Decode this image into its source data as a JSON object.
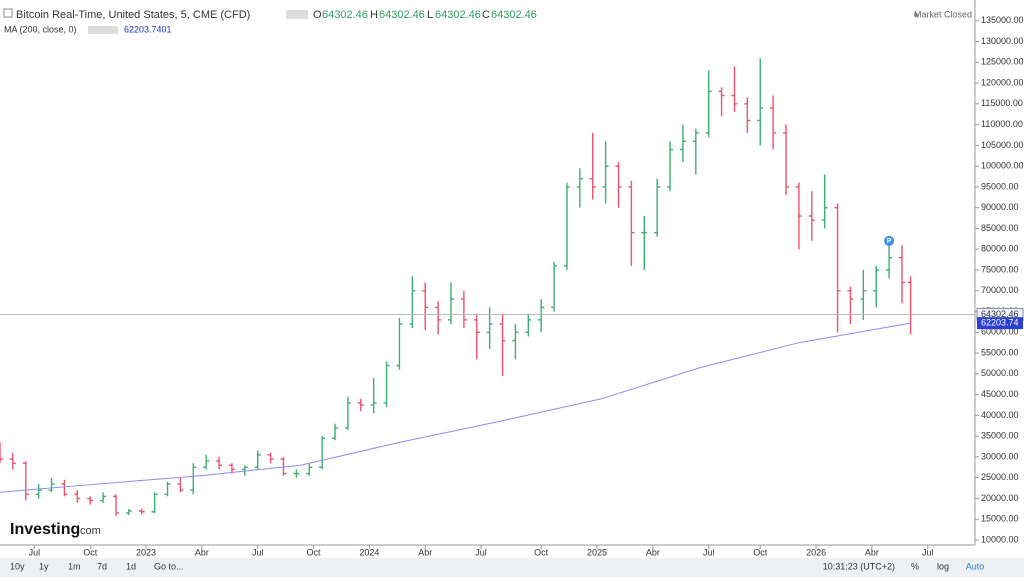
{
  "header": {
    "title": "Bitcoin Real-Time, United States, 5, CME (CFD)",
    "o_label": "O",
    "open": "64302.46",
    "h_label": "H",
    "high": "64302.46",
    "l_label": "L",
    "low": "64302.46",
    "c_label": "C",
    "close": "64302.46",
    "ma_label": "MA (200, close, 0)",
    "ma_value": "62203.7401",
    "status": "Market Closed"
  },
  "logo": {
    "name": "Investing",
    "suffix": ".com"
  },
  "toolbar": {
    "ranges": [
      "10y",
      "1y",
      "1m",
      "7d",
      "1d",
      "Go to..."
    ],
    "time": "10:31:23 (UTC+2)",
    "percent": "%",
    "log": "log",
    "auto": "Auto"
  },
  "chart_data": {
    "type": "ohlc",
    "up_color": "#3fae73",
    "down_color": "#ee5169",
    "ma_color": "#8b8cf0",
    "xlim": [
      0,
      227
    ],
    "ylim": [
      8800,
      140000
    ],
    "xticks": [
      {
        "value": 8,
        "label": "Jul"
      },
      {
        "value": 21,
        "label": "Oct"
      },
      {
        "value": 34,
        "label": "2023"
      },
      {
        "value": 47,
        "label": "Abr"
      },
      {
        "value": 60,
        "label": "Jul"
      },
      {
        "value": 73,
        "label": "Oct"
      },
      {
        "value": 86,
        "label": "2024"
      },
      {
        "value": 99,
        "label": "Abr"
      },
      {
        "value": 112,
        "label": "Jul"
      },
      {
        "value": 126,
        "label": "Oct"
      },
      {
        "value": 139,
        "label": "2025"
      },
      {
        "value": 152,
        "label": "Abr"
      },
      {
        "value": 165,
        "label": "Jul"
      },
      {
        "value": 177,
        "label": "Oct"
      },
      {
        "value": 190,
        "label": "2026"
      },
      {
        "value": 203,
        "label": "Abr"
      },
      {
        "value": 216,
        "label": "Jul"
      }
    ],
    "yticks": [
      {
        "value": 10000,
        "label": "10000.00"
      },
      {
        "value": 15000,
        "label": "15000.00"
      },
      {
        "value": 20000,
        "label": "20000.00"
      },
      {
        "value": 25000,
        "label": "25000.00"
      },
      {
        "value": 30000,
        "label": "30000.00"
      },
      {
        "value": 35000,
        "label": "35000.00"
      },
      {
        "value": 40000,
        "label": "40000.00"
      },
      {
        "value": 45000,
        "label": "45000.00"
      },
      {
        "value": 50000,
        "label": "50000.00"
      },
      {
        "value": 55000,
        "label": "55000.00"
      },
      {
        "value": 60000,
        "label": "60000.00"
      },
      {
        "value": 65000,
        "label": "65000.00"
      },
      {
        "value": 70000,
        "label": "70000.00"
      },
      {
        "value": 75000,
        "label": "75000.00"
      },
      {
        "value": 80000,
        "label": "80000.00"
      },
      {
        "value": 85000,
        "label": "85000.00"
      },
      {
        "value": 90000,
        "label": "90000.00"
      },
      {
        "value": 95000,
        "label": "95000.00"
      },
      {
        "value": 100000,
        "label": "100000.00"
      },
      {
        "value": 105000,
        "label": "105000.00"
      },
      {
        "value": 110000,
        "label": "110000.00"
      },
      {
        "value": 115000,
        "label": "115000.00"
      },
      {
        "value": 120000,
        "label": "120000.00"
      },
      {
        "value": 125000,
        "label": "125000.00"
      },
      {
        "value": 130000,
        "label": "130000.00"
      },
      {
        "value": 135000,
        "label": "135000.00"
      }
    ],
    "x": [
      0,
      3,
      6,
      9,
      12,
      15,
      18,
      21,
      24,
      27,
      30,
      33,
      36,
      39,
      42,
      45,
      48,
      51,
      54,
      57,
      60,
      63,
      66,
      69,
      72,
      75,
      78,
      81,
      84,
      87,
      90,
      93,
      96,
      99,
      102,
      105,
      108,
      111,
      114,
      117,
      120,
      123,
      126,
      129,
      132,
      135,
      138,
      141,
      144,
      147,
      150,
      153,
      156,
      159,
      162,
      165,
      168,
      171,
      174,
      177,
      180,
      183,
      186,
      189,
      192,
      195,
      198,
      201,
      204,
      207,
      210,
      212
    ],
    "open": [
      31500,
      29500,
      28500,
      21000,
      22000,
      23500,
      21000,
      20000,
      19500,
      20500,
      16500,
      17000,
      16800,
      21000,
      23500,
      22000,
      27500,
      29000,
      28000,
      27000,
      27500,
      30500,
      29500,
      26000,
      26000,
      27500,
      34500,
      37000,
      43000,
      42500,
      43000,
      52000,
      62000,
      70000,
      66000,
      63000,
      68000,
      63000,
      60000,
      62000,
      58000,
      60000,
      63000,
      66000,
      76000,
      95000,
      97000,
      95000,
      100000,
      95000,
      84000,
      84000,
      95000,
      104000,
      106000,
      108000,
      118000,
      117000,
      115000,
      111000,
      114000,
      108000,
      95000,
      88000,
      87000,
      90000,
      70000,
      68000,
      70000,
      75000,
      78000,
      72000
    ],
    "high": [
      33500,
      31000,
      29000,
      23500,
      25000,
      24500,
      22000,
      20500,
      21500,
      21000,
      17500,
      17500,
      21500,
      24000,
      25000,
      28500,
      30500,
      30000,
      28500,
      28000,
      31500,
      31000,
      30000,
      27000,
      28500,
      35000,
      38000,
      44500,
      44000,
      49000,
      53000,
      63500,
      73500,
      72000,
      67500,
      72000,
      70000,
      64500,
      66000,
      64500,
      62000,
      64500,
      68000,
      77000,
      96000,
      99500,
      108000,
      106000,
      101000,
      96500,
      88000,
      97000,
      106000,
      110000,
      109000,
      123000,
      119000,
      124000,
      116500,
      126000,
      117000,
      110000,
      96000,
      94000,
      98000,
      91000,
      71000,
      75000,
      76000,
      83000,
      81000,
      73500
    ],
    "low": [
      28500,
      27000,
      19500,
      20000,
      21500,
      20500,
      19000,
      18500,
      19000,
      15800,
      16000,
      16200,
      16500,
      20500,
      21500,
      21000,
      27000,
      27000,
      26000,
      25500,
      27000,
      28500,
      25500,
      25000,
      25500,
      27000,
      34000,
      36500,
      41000,
      40500,
      42000,
      51000,
      61000,
      60500,
      59500,
      62000,
      61000,
      53500,
      56000,
      49500,
      53500,
      59000,
      60000,
      65000,
      75000,
      90000,
      92000,
      91000,
      90000,
      76000,
      75000,
      83000,
      94000,
      101000,
      98000,
      107000,
      112000,
      113000,
      108000,
      105000,
      104000,
      93000,
      80000,
      82000,
      85000,
      60000,
      62000,
      63000,
      66000,
      73000,
      67000,
      59500
    ],
    "close": [
      29500,
      28500,
      21000,
      22000,
      23500,
      21000,
      20000,
      19500,
      20500,
      16500,
      17000,
      16800,
      21000,
      23500,
      22000,
      27500,
      29000,
      28000,
      27000,
      27500,
      30500,
      29500,
      26000,
      26000,
      27500,
      34500,
      37000,
      43000,
      42500,
      43000,
      52000,
      62000,
      70000,
      66000,
      63000,
      68000,
      63000,
      60000,
      62000,
      58000,
      60000,
      63000,
      66000,
      76000,
      95000,
      97000,
      95000,
      100000,
      95000,
      84000,
      84000,
      95000,
      104000,
      106000,
      108000,
      118000,
      117000,
      115000,
      111000,
      114000,
      108000,
      95000,
      88000,
      87000,
      90000,
      70000,
      68000,
      70000,
      75000,
      78000,
      72000,
      64302.46
    ],
    "ma": {
      "x": [
        0,
        23,
        47,
        70,
        93,
        116,
        140,
        163,
        186,
        212
      ],
      "values": [
        21500,
        23500,
        25500,
        28000,
        33500,
        38500,
        44000,
        51500,
        57500,
        62203.7401
      ],
      "value_label": "62203.74"
    },
    "last_price": 64302.46,
    "marker": {
      "x": 207,
      "value": 82000,
      "label": "P"
    }
  }
}
